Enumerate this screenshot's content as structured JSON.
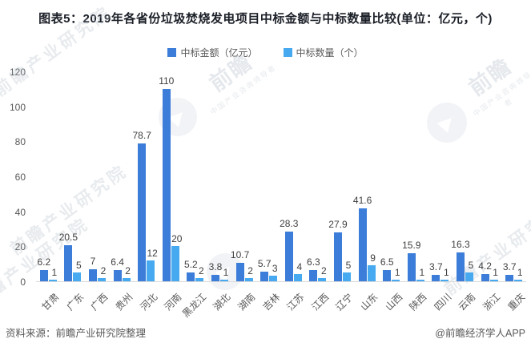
{
  "title": "图表5：2019年各省份垃圾焚烧发电项目中标金额与中标数量比较(单位：亿元，个)",
  "legend": [
    {
      "label": "中标金额（亿元）",
      "color": "#3b7dd8"
    },
    {
      "label": "中标数量（个）",
      "color": "#47aaf0"
    }
  ],
  "chart_data": {
    "type": "bar",
    "categories": [
      "甘肃",
      "广东",
      "广西",
      "贵州",
      "河北",
      "河南",
      "黑龙江",
      "湖北",
      "湖南",
      "吉林",
      "江苏",
      "江西",
      "辽宁",
      "山东",
      "山西",
      "陕西",
      "四川",
      "云南",
      "浙江",
      "重庆"
    ],
    "series": [
      {
        "name": "中标金额（亿元）",
        "color": "#3b7dd8",
        "values": [
          6.2,
          20.5,
          7,
          6.4,
          78.7,
          110,
          5.2,
          3.8,
          10.7,
          5.7,
          28.3,
          6.3,
          27.9,
          41.6,
          6.5,
          15.9,
          3.7,
          16.3,
          4.2,
          3.7
        ]
      },
      {
        "name": "中标数量（个）",
        "color": "#47aaf0",
        "values": [
          1,
          5,
          2,
          2,
          12,
          20,
          2,
          1,
          2,
          3,
          4,
          2,
          5,
          9,
          1,
          1,
          1,
          5,
          1,
          1
        ]
      }
    ],
    "title": "2019年各省份垃圾焚烧发电项目中标金额与中标数量比较",
    "xlabel": "",
    "ylabel": "",
    "ylim": [
      0,
      120
    ],
    "yticks": [
      0,
      20,
      40,
      60,
      80,
      100,
      120
    ],
    "grid": false,
    "legend_position": "top",
    "data_labels": true
  },
  "footer": {
    "source": "资料来源：前瞻产业研究院整理",
    "credit": "@前瞻经济学人APP"
  },
  "watermark": {
    "institute": "前瞻产业研究院",
    "brand": "前瞻",
    "slogan": "中国产业咨询领导者"
  }
}
